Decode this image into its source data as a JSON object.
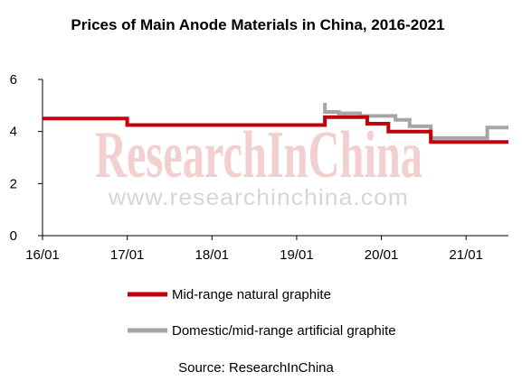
{
  "chart_data": {
    "type": "line",
    "title": "Prices of Main Anode Materials in China, 2016-2021",
    "xlabel": "",
    "ylabel": "",
    "ylim": [
      0,
      6
    ],
    "yticks": [
      "0",
      "2",
      "4",
      "6"
    ],
    "xlim": [
      "2016-01",
      "2021-07"
    ],
    "xticks": [
      "16/01",
      "17/01",
      "18/01",
      "19/01",
      "20/01",
      "21/01"
    ],
    "grid": false,
    "legend_position": "bottom",
    "series": [
      {
        "name": "Mid-range natural graphite",
        "color": "#c0000c",
        "x": [
          "2016-01",
          "2017-01",
          "2017-01",
          "2019-05",
          "2019-05",
          "2019-11",
          "2019-11",
          "2020-02",
          "2020-02",
          "2020-08",
          "2020-08",
          "2021-07"
        ],
        "y": [
          4.5,
          4.5,
          4.25,
          4.25,
          4.55,
          4.55,
          4.3,
          4.3,
          4.0,
          4.0,
          3.6,
          3.6
        ]
      },
      {
        "name": "Domestic/mid-range artificial graphite",
        "color": "#a6a6a6",
        "x": [
          "2019-05",
          "2019-05",
          "2019-07",
          "2019-07",
          "2019-10",
          "2019-10",
          "2020-03",
          "2020-03",
          "2020-05",
          "2020-05",
          "2020-08",
          "2020-08",
          "2021-04",
          "2021-04",
          "2021-07"
        ],
        "y": [
          5.1,
          4.75,
          4.75,
          4.7,
          4.7,
          4.6,
          4.6,
          4.45,
          4.45,
          4.2,
          4.2,
          3.75,
          3.75,
          4.15,
          4.15
        ]
      }
    ]
  },
  "watermark": {
    "brand": "ResearchInChina",
    "url": "www.researchinchina.com"
  },
  "source": "Source: ResearchInChina"
}
